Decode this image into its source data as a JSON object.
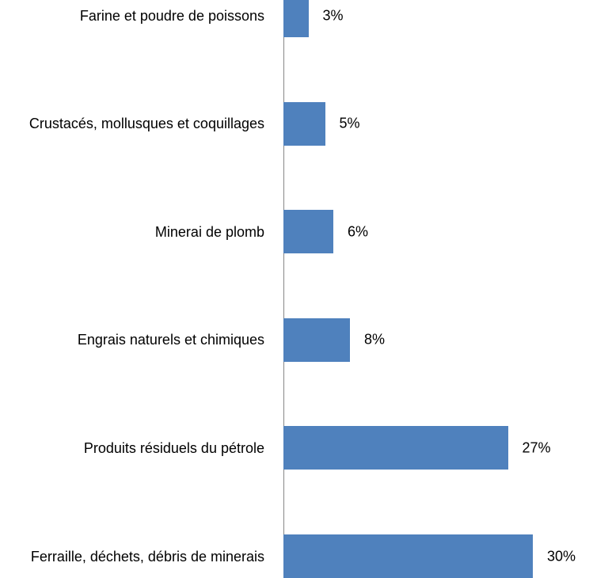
{
  "chart_data": {
    "type": "bar",
    "orientation": "horizontal",
    "categories": [
      "Farine et poudre de poissons",
      "Crustacés, mollusques et coquillages",
      "Minerai de plomb",
      "Engrais naturels et chimiques",
      "Produits résiduels du pétrole",
      "Ferraille, déchets, débris de minerais"
    ],
    "values": [
      3,
      5,
      6,
      8,
      27,
      30
    ],
    "value_labels": [
      "3%",
      "5%",
      "6%",
      "8%",
      "27%",
      "30%"
    ],
    "color": "#4f81bd"
  }
}
